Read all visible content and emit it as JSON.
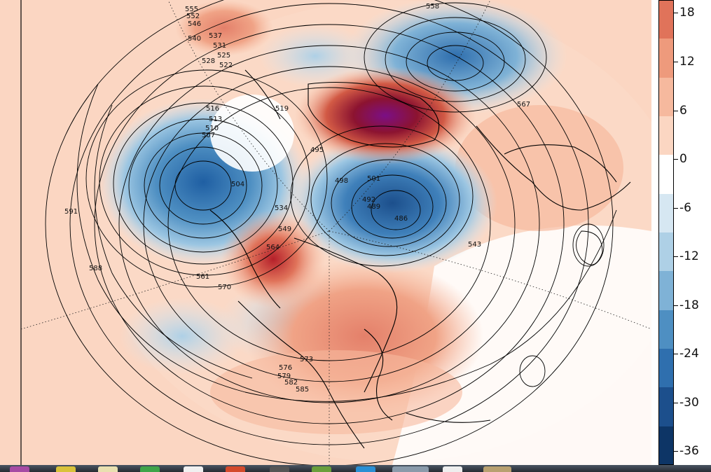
{
  "colorbar": {
    "ticks": [
      "18",
      "12",
      "6",
      "0",
      "-6",
      "-12",
      "-18",
      "-24",
      "-30",
      "-36"
    ],
    "colors": [
      "#e0735a",
      "#ee9a7c",
      "#f6b99e",
      "#fbd6c2",
      "#ffffff",
      "#d6e7f2",
      "#aed0e6",
      "#7fb2d6",
      "#4e8fc2",
      "#2f6fae",
      "#1c4f8c",
      "#0d3566"
    ]
  },
  "contour_labels": [
    "591",
    "588",
    "585",
    "582",
    "579",
    "576",
    "573",
    "570",
    "567",
    "564",
    "561",
    "558",
    "555",
    "552",
    "549",
    "546",
    "543",
    "540",
    "537",
    "534",
    "531",
    "528",
    "525",
    "522",
    "519",
    "516",
    "513",
    "510",
    "507",
    "504",
    "501",
    "498",
    "495",
    "492",
    "489",
    "486"
  ],
  "taskbar": {
    "icons": [
      "app-icon-1",
      "app-icon-2",
      "app-icon-3",
      "app-icon-4",
      "app-icon-5",
      "app-icon-6",
      "app-icon-7",
      "app-icon-8",
      "app-icon-9",
      "app-icon-10"
    ]
  }
}
